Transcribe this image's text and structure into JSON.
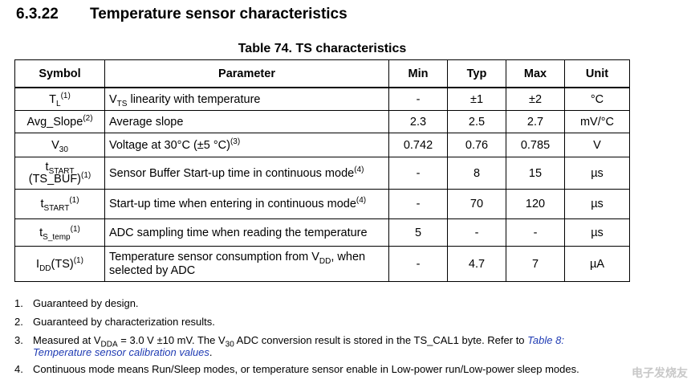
{
  "section": {
    "number": "6.3.22",
    "title": "Temperature sensor characteristics"
  },
  "table": {
    "caption": "Table 74. TS characteristics",
    "headers": [
      "Symbol",
      "Parameter",
      "Min",
      "Typ",
      "Max",
      "Unit"
    ],
    "rows": [
      {
        "sym_main": "T",
        "sym_sub": "L",
        "sym_sup": "(1)",
        "param_a": "V",
        "param_sub": "TS",
        "param_b": " linearity with temperature",
        "min": "-",
        "typ": "±1",
        "max": "±2",
        "unit": "°C"
      },
      {
        "sym_main": "Avg_Slope",
        "sym_sup": "(2)",
        "param_a": "Average slope",
        "min": "2.3",
        "typ": "2.5",
        "max": "2.7",
        "unit": "mV/°C"
      },
      {
        "sym_main": "V",
        "sym_sub": "30",
        "param_a": "Voltage at 30°C (±5 °C)",
        "param_sup": "(3)",
        "min": "0.742",
        "typ": "0.76",
        "max": "0.785",
        "unit": "V"
      },
      {
        "sym_main": "t",
        "sym_sub": "START",
        "sym_line2": "(TS_BUF)",
        "sym_sup": "(1)",
        "param_a": "Sensor Buffer Start-up time in continuous mode",
        "param_sup": "(4)",
        "min": "-",
        "typ": "8",
        "max": "15",
        "unit": "µs"
      },
      {
        "sym_main": "t",
        "sym_sub": "START",
        "sym_sup": "(1)",
        "param_a": "Start-up time when entering in continuous mode",
        "param_sup": "(4)",
        "min": "-",
        "typ": "70",
        "max": "120",
        "unit": "µs"
      },
      {
        "sym_main": "t",
        "sym_sub": "S_temp",
        "sym_sup": "(1)",
        "param_a": "ADC sampling time when reading the temperature",
        "min": "5",
        "typ": "-",
        "max": "-",
        "unit": "µs"
      },
      {
        "sym_main": "I",
        "sym_sub": "DD",
        "sym_after": "(TS)",
        "sym_sup": "(1)",
        "param_a": "Temperature sensor consumption from V",
        "param_sub": "DD",
        "param_b": ", when",
        "param_line2": "selected by ADC",
        "min": "-",
        "typ": "4.7",
        "max": "7",
        "unit": "µA"
      }
    ]
  },
  "notes": [
    {
      "num": "1.",
      "text": "Guaranteed by design."
    },
    {
      "num": "2.",
      "text": "Guaranteed by characterization results."
    },
    {
      "num": "3.",
      "t1": "Measured at V",
      "sub1": "DDA",
      "t2": " = 3.0 V ±10 mV. The V",
      "sub2": "30",
      "t3": " ADC conversion result is stored in the TS_CAL1 byte. Refer to ",
      "link": "Table 8:",
      "link2": "Temperature sensor calibration values",
      "t4": "."
    },
    {
      "num": "4.",
      "text": "Continuous mode means Run/Sleep modes, or temperature sensor enable in Low-power run/Low-power sleep modes."
    }
  ],
  "watermark": "电子发烧友"
}
